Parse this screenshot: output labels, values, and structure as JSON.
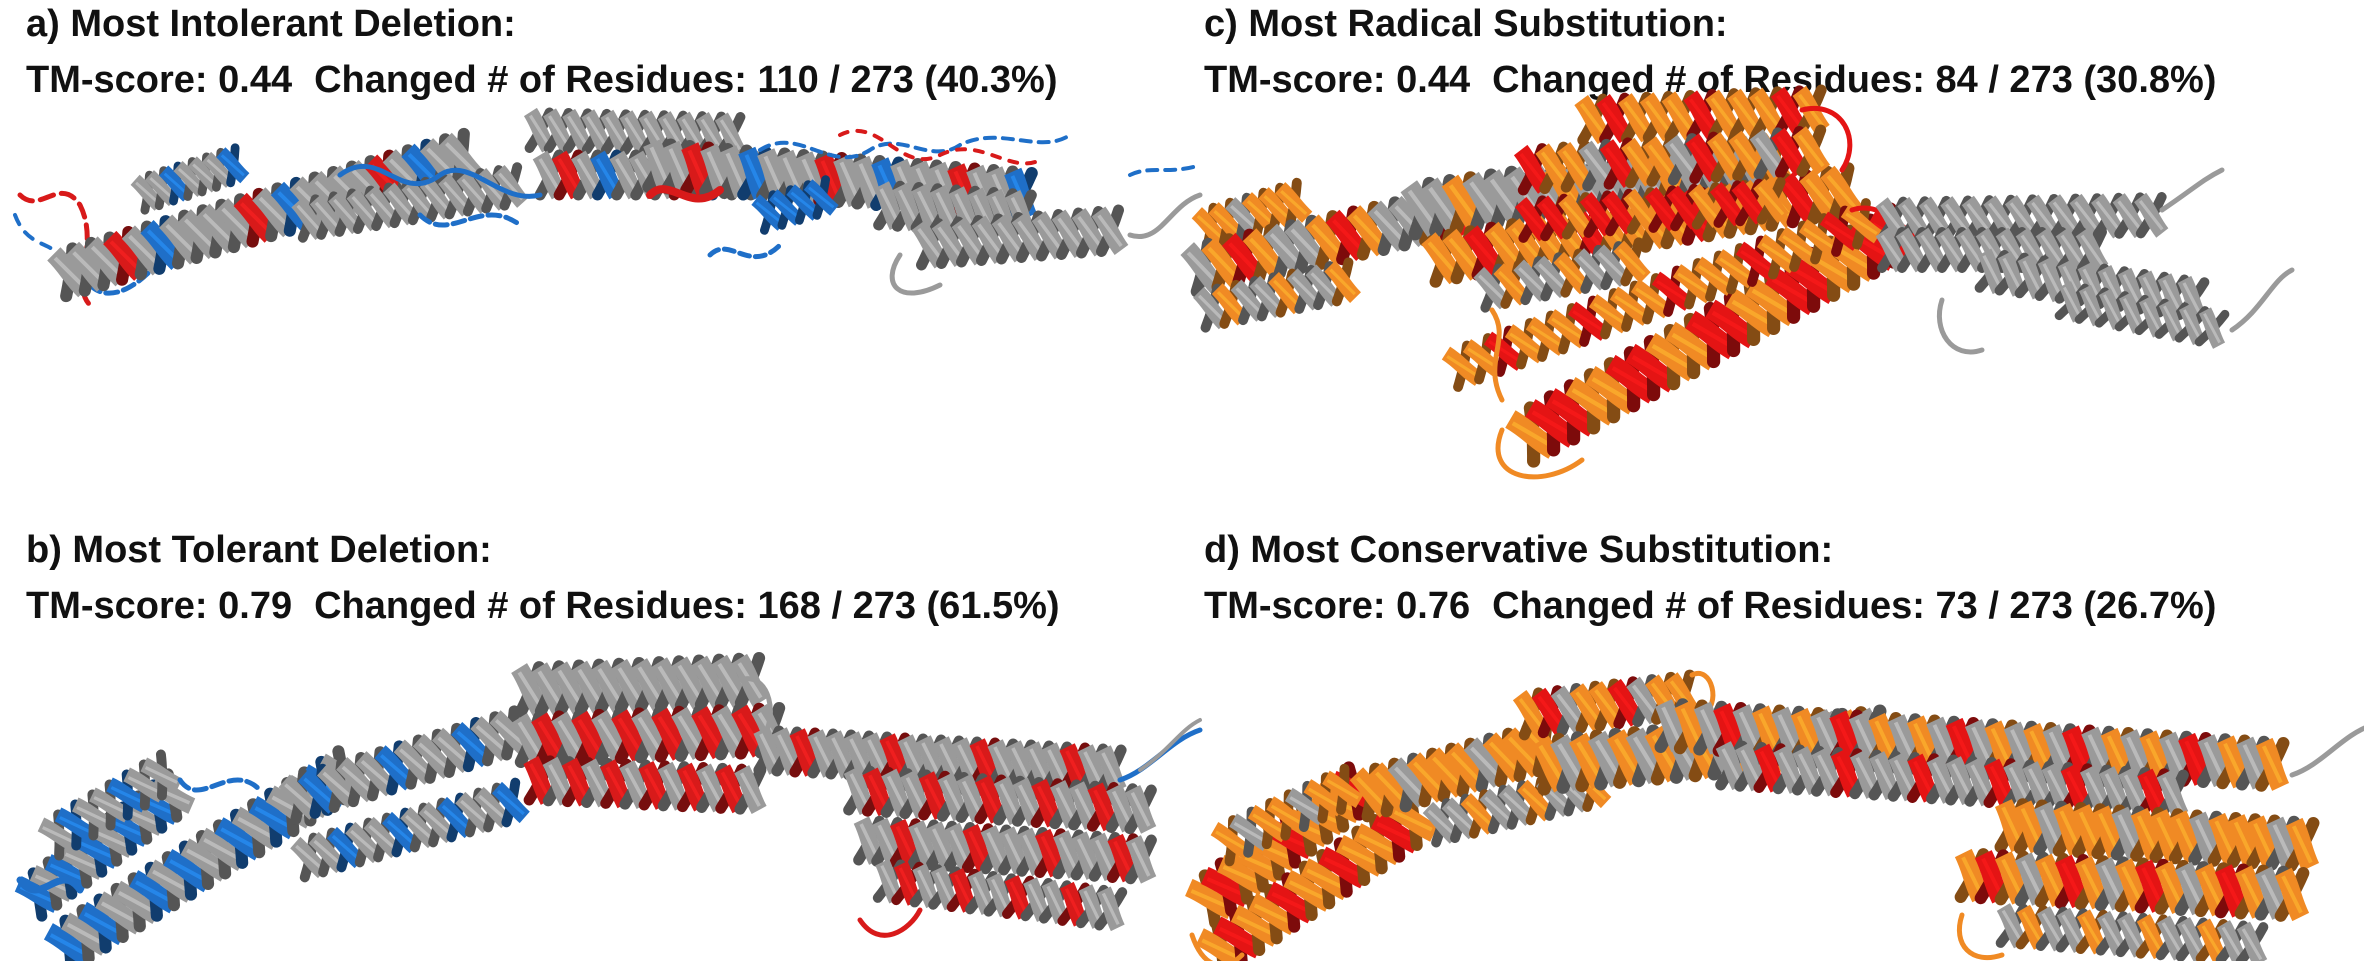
{
  "panels": {
    "a": {
      "title": "a) Most Intolerant Deletion:",
      "tm_label": "TM-score: 0.44",
      "changed_label": "Changed # of Residues: 110 / 273 (40.3%)"
    },
    "b": {
      "title": "b) Most Tolerant Deletion:",
      "tm_label": "TM-score: 0.79",
      "changed_label": "Changed # of Residues: 168 / 273 (61.5%)"
    },
    "c": {
      "title": "c) Most Radical Substitution:",
      "tm_label": "TM-score: 0.44",
      "changed_label": "Changed # of Residues: 84 / 273 (30.8%)"
    },
    "d": {
      "title": "d) Most Conservative Substitution:",
      "tm_label": "TM-score: 0.76",
      "changed_label": "Changed # of Residues: 73 / 273 (26.7%)"
    }
  },
  "colors": {
    "reference_grey": "#9a9a9a",
    "deletion_blue": "#1f6fc8",
    "deletion_red": "#d81a1a",
    "substitution_orange": "#f08a24",
    "substitution_red": "#e41414"
  },
  "icons": [
    "protein-ribbon-structure"
  ]
}
